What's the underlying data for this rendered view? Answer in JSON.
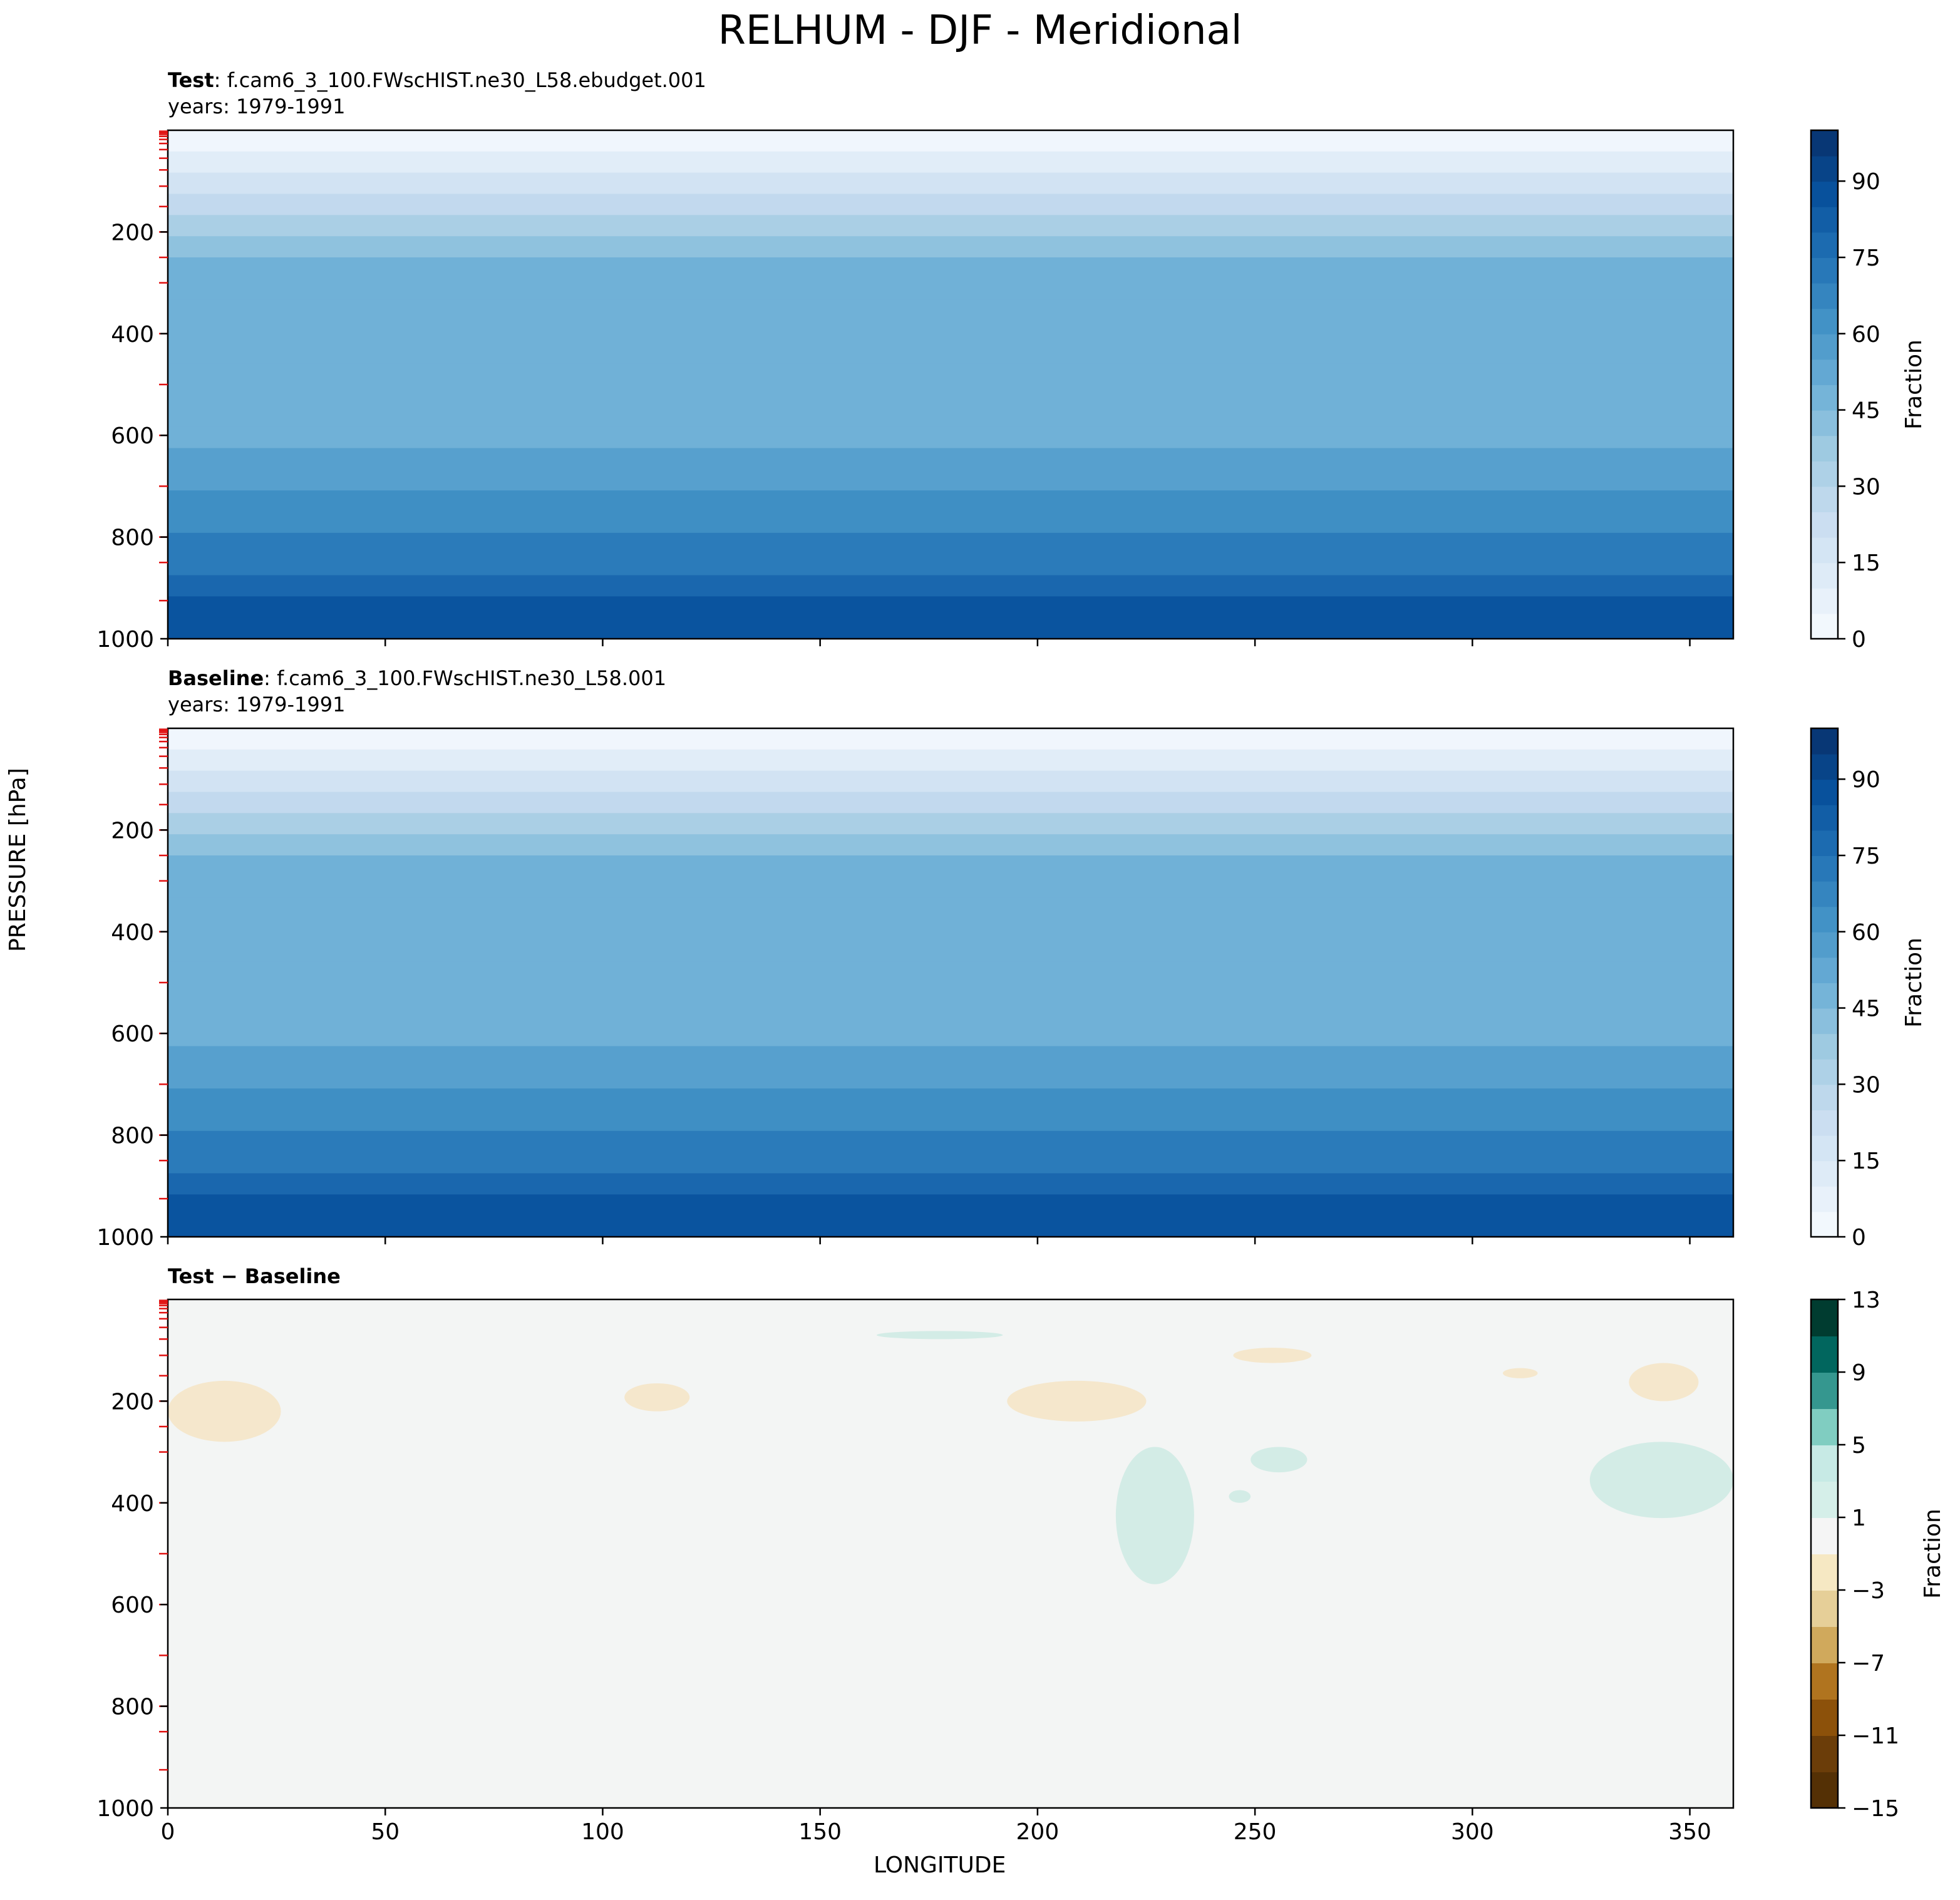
{
  "figure_title": "RELHUM - DJF - Meridional",
  "y_axis_label": "PRESSURE [hPa]",
  "x_axis_label": "LONGITUDE",
  "panels": [
    {
      "label": "Test",
      "case": ": f.cam6_3_100.FWscHIST.ne30_L58.ebudget.001",
      "years": "years: 1979-1991",
      "colorbar_label": "Fraction"
    },
    {
      "label": "Baseline",
      "case": ": f.cam6_3_100.FWscHIST.ne30_L58.001",
      "years": "years: 1979-1991",
      "colorbar_label": "Fraction"
    },
    {
      "label": "Test − Baseline",
      "case": "",
      "years": "",
      "colorbar_label": "Fraction"
    }
  ],
  "chart_data": [
    {
      "type": "heatmap",
      "title": "Test : f.cam6_3_100.FWscHIST.ne30_L58.ebudget.001",
      "xlabel": "",
      "ylabel": "PRESSURE [hPa]",
      "xlim": [
        0,
        360
      ],
      "ylim": [
        1000,
        0
      ],
      "xticks": [
        0,
        50,
        100,
        150,
        200,
        250,
        300,
        350
      ],
      "yticks": [
        200,
        400,
        600,
        800,
        1000
      ],
      "colorbar": {
        "label": "Fraction",
        "range": [
          0,
          100
        ],
        "ticks": [
          0,
          15,
          30,
          45,
          60,
          75,
          90
        ]
      },
      "profile": {
        "pressure": [
          0,
          50,
          100,
          150,
          200,
          250,
          300,
          400,
          500,
          600,
          700,
          800,
          850,
          900,
          950,
          1000
        ],
        "relhum": [
          2,
          8,
          20,
          30,
          38,
          48,
          52,
          50,
          46,
          50,
          58,
          66,
          72,
          80,
          88,
          82
        ]
      }
    },
    {
      "type": "heatmap",
      "title": "Baseline : f.cam6_3_100.FWscHIST.ne30_L58.001",
      "xlabel": "",
      "ylabel": "PRESSURE [hPa]",
      "xlim": [
        0,
        360
      ],
      "ylim": [
        1000,
        0
      ],
      "xticks": [
        0,
        50,
        100,
        150,
        200,
        250,
        300,
        350
      ],
      "yticks": [
        200,
        400,
        600,
        800,
        1000
      ],
      "colorbar": {
        "label": "Fraction",
        "range": [
          0,
          100
        ],
        "ticks": [
          0,
          15,
          30,
          45,
          60,
          75,
          90
        ]
      },
      "profile": {
        "pressure": [
          0,
          50,
          100,
          150,
          200,
          250,
          300,
          400,
          500,
          600,
          700,
          800,
          850,
          900,
          950,
          1000
        ],
        "relhum": [
          2,
          8,
          20,
          30,
          38,
          48,
          52,
          50,
          46,
          50,
          58,
          66,
          72,
          80,
          88,
          82
        ]
      }
    },
    {
      "type": "heatmap",
      "title": "Test − Baseline",
      "xlabel": "LONGITUDE",
      "ylabel": "PRESSURE [hPa]",
      "xlim": [
        0,
        360
      ],
      "ylim": [
        1000,
        0
      ],
      "xticks": [
        0,
        50,
        100,
        150,
        200,
        250,
        300,
        350
      ],
      "yticks": [
        200,
        400,
        600,
        800,
        1000
      ],
      "colorbar": {
        "label": "Fraction",
        "range": [
          -15,
          13
        ],
        "ticks": [
          13,
          9,
          5,
          1,
          -3,
          -7,
          -11,
          -15
        ],
        "tick_labels": [
          "13",
          "9",
          "5",
          "1",
          "−3",
          "−7",
          "−11",
          "−15"
        ]
      },
      "anomalies": [
        {
          "sign": "negative",
          "lon": [
            0,
            26
          ],
          "p": [
            160,
            280
          ]
        },
        {
          "sign": "negative",
          "lon": [
            105,
            120
          ],
          "p": [
            165,
            220
          ]
        },
        {
          "sign": "negative",
          "lon": [
            193,
            225
          ],
          "p": [
            160,
            240
          ]
        },
        {
          "sign": "negative",
          "lon": [
            245,
            263
          ],
          "p": [
            95,
            125
          ]
        },
        {
          "sign": "negative",
          "lon": [
            307,
            315
          ],
          "p": [
            135,
            155
          ]
        },
        {
          "sign": "negative",
          "lon": [
            336,
            352
          ],
          "p": [
            125,
            200
          ]
        },
        {
          "sign": "positive",
          "lon": [
            163,
            192
          ],
          "p": [
            62,
            78
          ]
        },
        {
          "sign": "positive",
          "lon": [
            218,
            236
          ],
          "p": [
            290,
            560
          ]
        },
        {
          "sign": "positive",
          "lon": [
            249,
            262
          ],
          "p": [
            290,
            340
          ]
        },
        {
          "sign": "positive",
          "lon": [
            244,
            249
          ],
          "p": [
            375,
            400
          ]
        },
        {
          "sign": "positive",
          "lon": [
            327,
            360
          ],
          "p": [
            280,
            430
          ]
        }
      ]
    }
  ]
}
